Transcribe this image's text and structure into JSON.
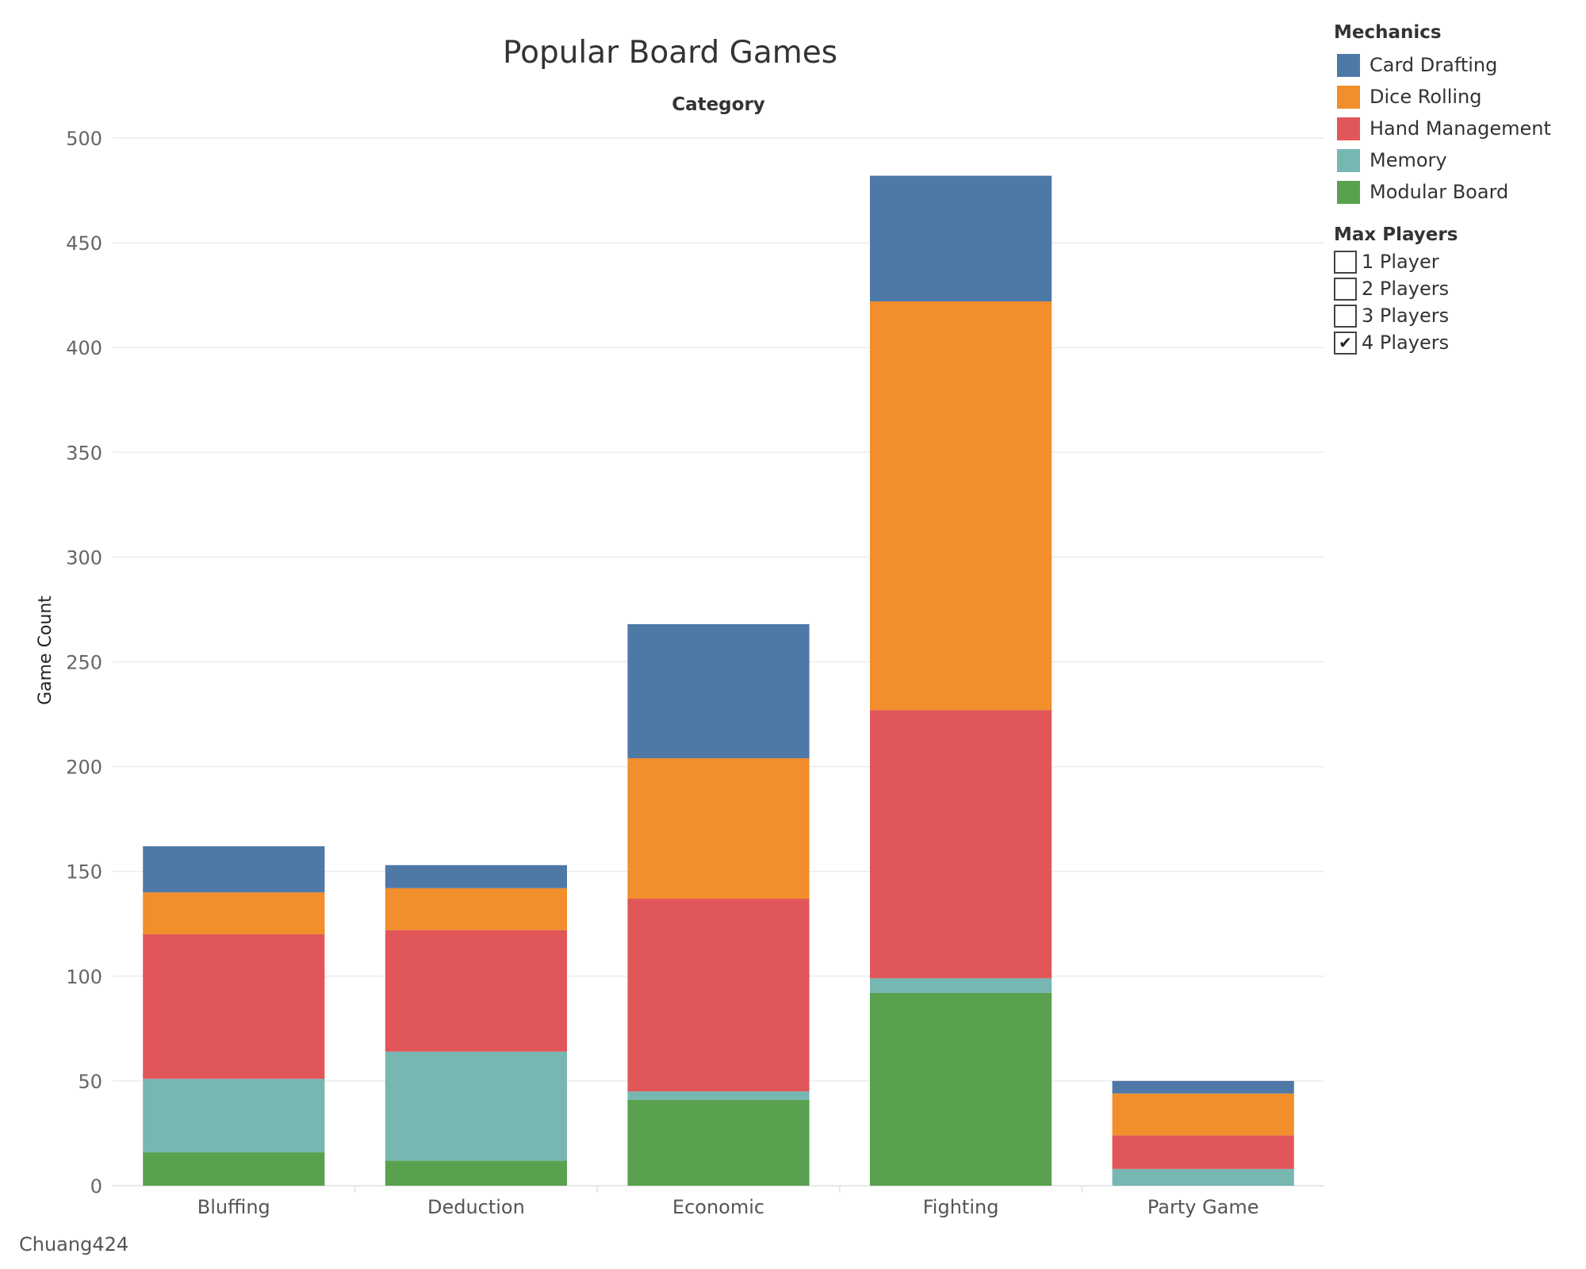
{
  "chart_data": {
    "type": "bar",
    "stacked": true,
    "title": "Popular Board Games",
    "column_header": "Category",
    "ylabel": "Game Count",
    "xlabel": "",
    "ylim": [
      0,
      500
    ],
    "yticks": [
      0,
      50,
      100,
      150,
      200,
      250,
      300,
      350,
      400,
      450,
      500
    ],
    "grid": true,
    "legend_position": "right",
    "categories": [
      "Bluffing",
      "Deduction",
      "Economic",
      "Fighting",
      "Party Game"
    ],
    "series": [
      {
        "name": "Modular Board",
        "color": "#59a14f",
        "values": [
          16,
          12,
          41,
          92,
          0
        ]
      },
      {
        "name": "Memory",
        "color": "#76b7b2",
        "values": [
          35,
          52,
          4,
          7,
          8
        ]
      },
      {
        "name": "Hand Management",
        "color": "#e15759",
        "values": [
          69,
          58,
          92,
          128,
          16
        ]
      },
      {
        "name": "Dice Rolling",
        "color": "#f28e2b",
        "values": [
          20,
          20,
          67,
          195,
          20
        ]
      },
      {
        "name": "Card Drafting",
        "color": "#4e79a7",
        "values": [
          22,
          11,
          64,
          60,
          6
        ]
      }
    ]
  },
  "legend": {
    "title": "Mechanics",
    "items": [
      {
        "label": "Card Drafting",
        "color": "#4e79a7"
      },
      {
        "label": "Dice Rolling",
        "color": "#f28e2b"
      },
      {
        "label": "Hand Management",
        "color": "#e15759"
      },
      {
        "label": "Memory",
        "color": "#76b7b2"
      },
      {
        "label": "Modular Board",
        "color": "#59a14f"
      }
    ]
  },
  "filter": {
    "title": "Max Players",
    "items": [
      {
        "label": "1 Player",
        "checked": false
      },
      {
        "label": "2 Players",
        "checked": false
      },
      {
        "label": "3 Players",
        "checked": false
      },
      {
        "label": "4 Players",
        "checked": true
      }
    ]
  },
  "footer": {
    "author": "Chuang424"
  }
}
